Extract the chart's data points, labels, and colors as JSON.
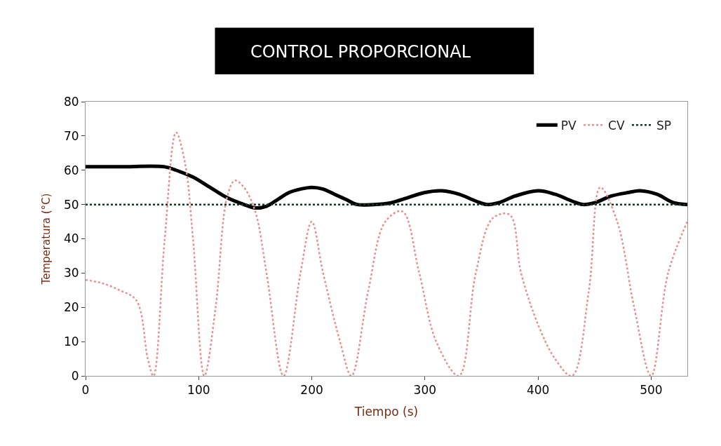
{
  "chart_data": {
    "type": "line",
    "title": "CONTROL PROPORCIONAL",
    "xlabel": "Tiempo (s)",
    "ylabel": "Temperatura (°C)",
    "xlim": [
      0,
      532
    ],
    "ylim": [
      0,
      80
    ],
    "xticks": [
      0,
      100,
      200,
      300,
      400,
      500
    ],
    "yticks": [
      0,
      10,
      20,
      30,
      40,
      50,
      60,
      70,
      80
    ],
    "legend": "top right",
    "series": [
      {
        "name": "PV",
        "color": "#000000",
        "line_style": "solid",
        "x": [
          0,
          30,
          70,
          80,
          95,
          110,
          125,
          140,
          150,
          160,
          170,
          180,
          190,
          200,
          210,
          220,
          230,
          240,
          255,
          270,
          285,
          300,
          315,
          330,
          345,
          355,
          365,
          380,
          400,
          415,
          430,
          440,
          450,
          465,
          480,
          490,
          505,
          520,
          532
        ],
        "values": [
          61,
          61,
          61,
          60,
          58,
          55,
          52,
          50,
          49,
          49.5,
          51.5,
          53.5,
          54.5,
          55,
          54.5,
          53,
          51.5,
          50,
          50,
          50.5,
          52,
          53.5,
          54,
          53,
          51,
          50,
          50.5,
          52.5,
          54,
          53,
          51,
          50,
          50.5,
          52.5,
          53.5,
          54,
          53,
          50.5,
          50
        ]
      },
      {
        "name": "CV",
        "color": "#e89090",
        "line_style": "dotted",
        "x": [
          0,
          15,
          30,
          45,
          55,
          60,
          70,
          80,
          88,
          95,
          105,
          115,
          125,
          132,
          140,
          150,
          160,
          175,
          190,
          200,
          210,
          225,
          235,
          250,
          265,
          280,
          295,
          310,
          330,
          345,
          360,
          375,
          385,
          400,
          415,
          430,
          445,
          455,
          470,
          485,
          500,
          515,
          532
        ],
        "values": [
          28,
          27,
          25,
          22,
          5,
          0,
          40,
          71,
          62,
          40,
          0,
          20,
          52,
          57,
          55,
          48,
          30,
          0,
          30,
          45,
          30,
          10,
          0,
          25,
          45,
          48,
          30,
          10,
          0,
          30,
          46,
          47,
          30,
          15,
          5,
          0,
          25,
          55,
          45,
          20,
          0,
          30,
          45
        ]
      },
      {
        "name": "SP",
        "color": "#0d3b22",
        "line_style": "dotted",
        "x": [
          0,
          532
        ],
        "values": [
          50,
          50
        ]
      }
    ]
  }
}
